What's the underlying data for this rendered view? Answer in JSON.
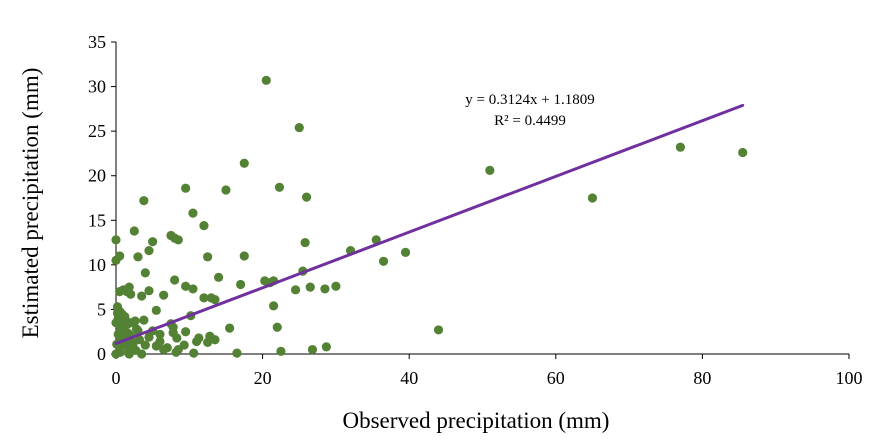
{
  "chart_data": {
    "type": "scatter",
    "xlabel": "Observed precipitation (mm)",
    "ylabel": "Estimated precipitation (mm)",
    "xlim": [
      0,
      100
    ],
    "ylim": [
      0,
      35
    ],
    "xticks": [
      "0",
      "20",
      "40",
      "60",
      "80",
      "100"
    ],
    "yticks": [
      "0",
      "5",
      "10",
      "15",
      "20",
      "25",
      "30",
      "35"
    ],
    "grid": false,
    "legend": "none",
    "colors": {
      "points": "#548235",
      "trendline": "#7030A0"
    },
    "annotation": {
      "equation": "y = 0.3124x + 1.1809",
      "r_squared": "R² = 0.4499"
    },
    "trendline": {
      "slope": 0.3124,
      "intercept": 1.1809,
      "x_range": [
        0,
        85.5
      ]
    },
    "points": [
      [
        0.0,
        12.8
      ],
      [
        0.0,
        10.5
      ],
      [
        0.5,
        11.0
      ],
      [
        0.5,
        7.0
      ],
      [
        1.0,
        7.2
      ],
      [
        1.5,
        7.0
      ],
      [
        1.8,
        7.5
      ],
      [
        2.0,
        6.7
      ],
      [
        2.5,
        13.8
      ],
      [
        3.0,
        10.9
      ],
      [
        3.5,
        6.5
      ],
      [
        4.0,
        9.1
      ],
      [
        4.5,
        7.1
      ],
      [
        4.5,
        11.6
      ],
      [
        5.0,
        12.6
      ],
      [
        3.8,
        17.2
      ],
      [
        5.5,
        4.9
      ],
      [
        6.5,
        6.6
      ],
      [
        7.5,
        3.4
      ],
      [
        7.5,
        13.3
      ],
      [
        8.0,
        13.0
      ],
      [
        8.5,
        12.8
      ],
      [
        8.0,
        8.3
      ],
      [
        9.5,
        18.6
      ],
      [
        9.5,
        7.6
      ],
      [
        10.5,
        7.3
      ],
      [
        10.5,
        15.8
      ],
      [
        12.0,
        14.4
      ],
      [
        12.5,
        10.9
      ],
      [
        12.0,
        6.3
      ],
      [
        13.0,
        6.3
      ],
      [
        13.5,
        6.1
      ],
      [
        14.0,
        8.6
      ],
      [
        15.0,
        18.4
      ],
      [
        17.0,
        7.8
      ],
      [
        17.5,
        11.0
      ],
      [
        17.5,
        21.4
      ],
      [
        20.3,
        8.2
      ],
      [
        21.0,
        8.0
      ],
      [
        21.5,
        8.2
      ],
      [
        20.5,
        30.7
      ],
      [
        21.5,
        5.4
      ],
      [
        22.3,
        18.7
      ],
      [
        22.0,
        3.0
      ],
      [
        24.5,
        7.2
      ],
      [
        25.0,
        25.4
      ],
      [
        25.5,
        9.3
      ],
      [
        25.8,
        12.5
      ],
      [
        26.0,
        17.6
      ],
      [
        26.5,
        7.5
      ],
      [
        28.5,
        7.3
      ],
      [
        30.0,
        7.6
      ],
      [
        32.0,
        11.6
      ],
      [
        35.5,
        12.8
      ],
      [
        36.5,
        10.4
      ],
      [
        39.5,
        11.4
      ],
      [
        44.0,
        2.7
      ],
      [
        51.0,
        20.6
      ],
      [
        65.0,
        17.5
      ],
      [
        77.0,
        23.2
      ],
      [
        85.5,
        22.6
      ],
      [
        16.5,
        0.1
      ],
      [
        22.5,
        0.3
      ],
      [
        26.8,
        0.5
      ],
      [
        28.7,
        0.8
      ],
      [
        15.5,
        2.9
      ],
      [
        13.5,
        1.6
      ],
      [
        12.5,
        1.3
      ],
      [
        11.3,
        1.8
      ],
      [
        10.6,
        0.1
      ],
      [
        9.5,
        2.5
      ],
      [
        9.3,
        1.0
      ],
      [
        8.5,
        0.5
      ],
      [
        8.3,
        1.8
      ],
      [
        7.8,
        3.0
      ],
      [
        7.0,
        0.7
      ],
      [
        6.5,
        0.5
      ],
      [
        6.0,
        2.2
      ],
      [
        5.5,
        0.9
      ],
      [
        5.0,
        2.6
      ],
      [
        4.5,
        1.9
      ],
      [
        4.0,
        1.0
      ],
      [
        3.5,
        0.0
      ],
      [
        3.0,
        2.6
      ],
      [
        2.6,
        3.7
      ],
      [
        2.3,
        1.3
      ],
      [
        2.0,
        0.3
      ],
      [
        1.8,
        0.0
      ],
      [
        1.5,
        3.3
      ],
      [
        1.2,
        4.2
      ],
      [
        1.0,
        1.5
      ],
      [
        0.8,
        2.9
      ],
      [
        0.6,
        0.2
      ],
      [
        0.5,
        4.8
      ],
      [
        0.4,
        3.7
      ],
      [
        0.3,
        2.2
      ],
      [
        0.2,
        5.3
      ],
      [
        0.1,
        1.1
      ],
      [
        0.0,
        0.0
      ],
      [
        0.0,
        3.5
      ],
      [
        0.3,
        4.0
      ],
      [
        0.5,
        0.9
      ],
      [
        0.8,
        4.5
      ],
      [
        1.0,
        2.5
      ],
      [
        1.3,
        3.8
      ],
      [
        1.6,
        0.8
      ],
      [
        2.0,
        2.0
      ],
      [
        2.3,
        1.0
      ],
      [
        2.7,
        0.4
      ],
      [
        0.7,
        1.8
      ],
      [
        1.1,
        3.0
      ],
      [
        0.2,
        4.6
      ],
      [
        1.8,
        0.3
      ],
      [
        0.9,
        4.0
      ],
      [
        1.4,
        1.3
      ],
      [
        0.4,
        0.2
      ],
      [
        2.0,
        3.5
      ],
      [
        2.8,
        2.8
      ],
      [
        3.2,
        1.6
      ],
      [
        7.8,
        2.4
      ],
      [
        8.2,
        0.2
      ],
      [
        10.2,
        4.3
      ],
      [
        11.0,
        1.4
      ],
      [
        12.8,
        2.0
      ],
      [
        3.8,
        3.8
      ],
      [
        6.0,
        1.4
      ],
      [
        1.7,
        2.3
      ],
      [
        0.6,
        3.1
      ]
    ]
  }
}
